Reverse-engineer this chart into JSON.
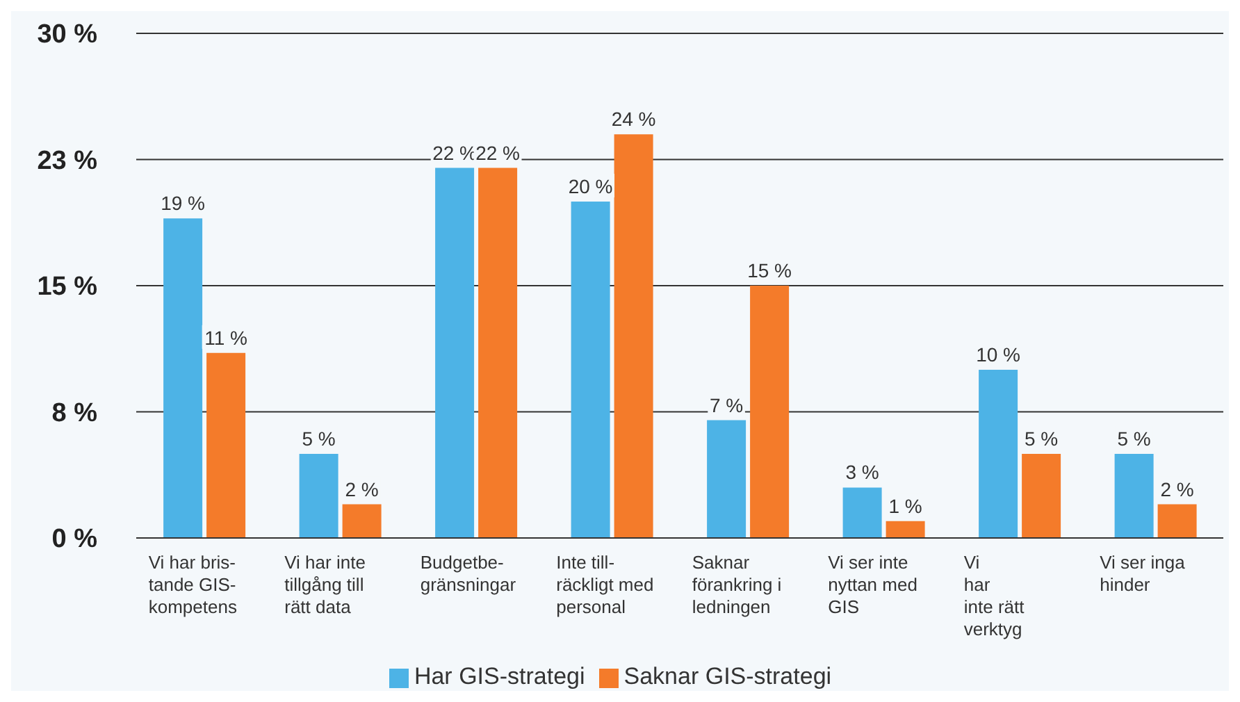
{
  "chart_data": {
    "type": "bar",
    "categories": [
      "Vi har bris-\ntande GIS-\nkompetens",
      "Vi har inte\ntillgång till\nrätt data",
      "Budgetbe-\ngränsningar",
      "Inte till-\nräckligt med\npersonal",
      "Saknar\nförankring i\nledningen",
      "Vi ser inte\nnyttan med\nGIS",
      "Vi\nhar\ninte rätt\nverktyg",
      "Vi ser inga\nhinder"
    ],
    "series": [
      {
        "name": "Har GIS-strategi",
        "color": "#4db3e6",
        "values": [
          19,
          5,
          22,
          20,
          7,
          3,
          10,
          5
        ],
        "value_labels": [
          "19 %",
          "5 %",
          "22 %",
          "20 %",
          "7 %",
          "3 %",
          "10 %",
          "5 %"
        ]
      },
      {
        "name": "Saknar GIS-strategi",
        "color": "#f47b2a",
        "values": [
          11,
          2,
          22,
          24,
          15,
          1,
          5,
          2
        ],
        "value_labels": [
          "11 %",
          "2 %",
          "22 %",
          "24 %",
          "15 %",
          "1 %",
          "5 %",
          "2 %"
        ]
      }
    ],
    "ylim": [
      0,
      30
    ],
    "yticks": [
      {
        "value": 0,
        "label": "0 %"
      },
      {
        "value": 7.5,
        "label": "8 %"
      },
      {
        "value": 15,
        "label": "15 %"
      },
      {
        "value": 22.5,
        "label": "23 %"
      },
      {
        "value": 30,
        "label": "30 %"
      }
    ],
    "grid": "y",
    "legend": "bottom"
  }
}
